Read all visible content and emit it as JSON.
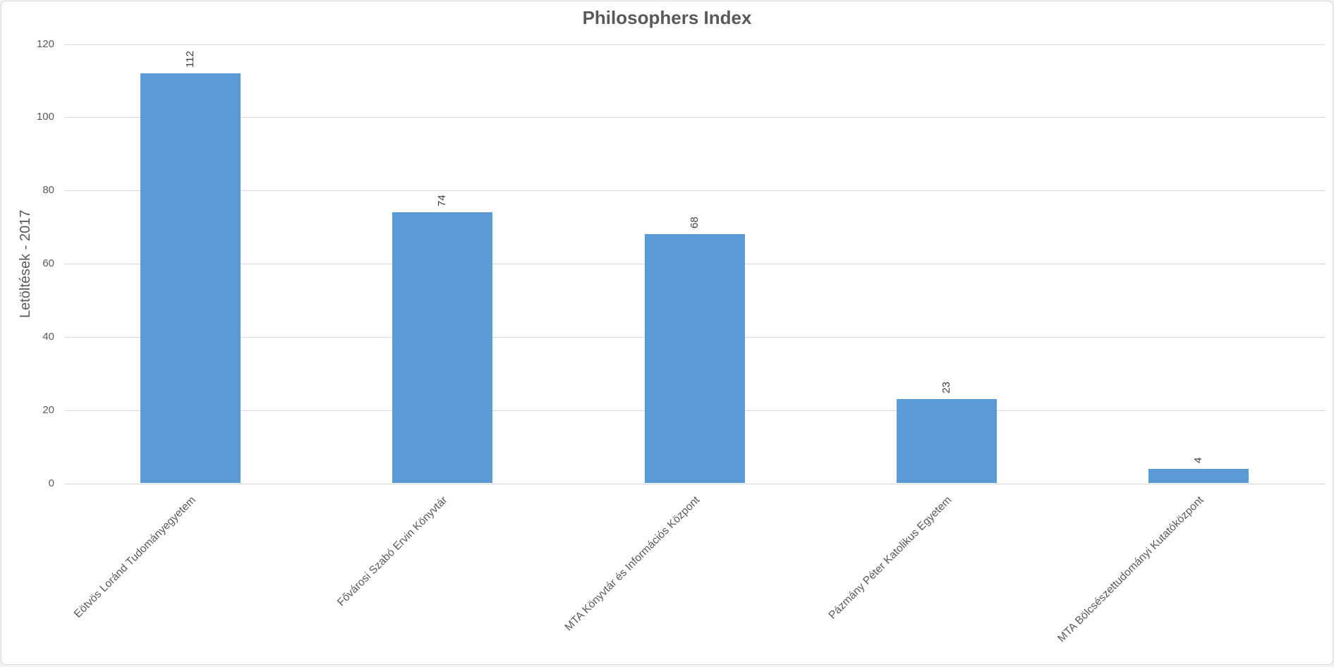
{
  "chart_data": {
    "type": "bar",
    "title": "Philosophers Index",
    "xlabel": "",
    "ylabel": "Letöltések - 2017",
    "categories": [
      "Eötvös Loránd Tudományegyetem",
      "Fővárosi Szabó Ervin Könyvtár",
      "MTA Könyvtár és Információs Központ",
      "Pázmány Péter Katolikus Egyetem",
      "MTA Bölcsészettudományi Kutatóközpont"
    ],
    "values": [
      112,
      74,
      68,
      23,
      4
    ],
    "data_labels": [
      "112",
      "74",
      "68",
      "23",
      "4"
    ],
    "ylim": [
      0,
      120
    ],
    "yticks": [
      0,
      20,
      40,
      60,
      80,
      100,
      120
    ],
    "grid": "horizontal",
    "legend": "none",
    "data_label_rotation": "vertical-bottom-to-top",
    "category_label_rotation": -45
  },
  "colors": {
    "bar": "#5b9bd5",
    "gridline": "#d9d9d9",
    "axis_text": "#595959",
    "value_label": "#404040",
    "title_text": "#595959",
    "chart_border": "#d9d9d9",
    "chart_background": "#ffffff",
    "page_background": "#f2f2f2"
  }
}
